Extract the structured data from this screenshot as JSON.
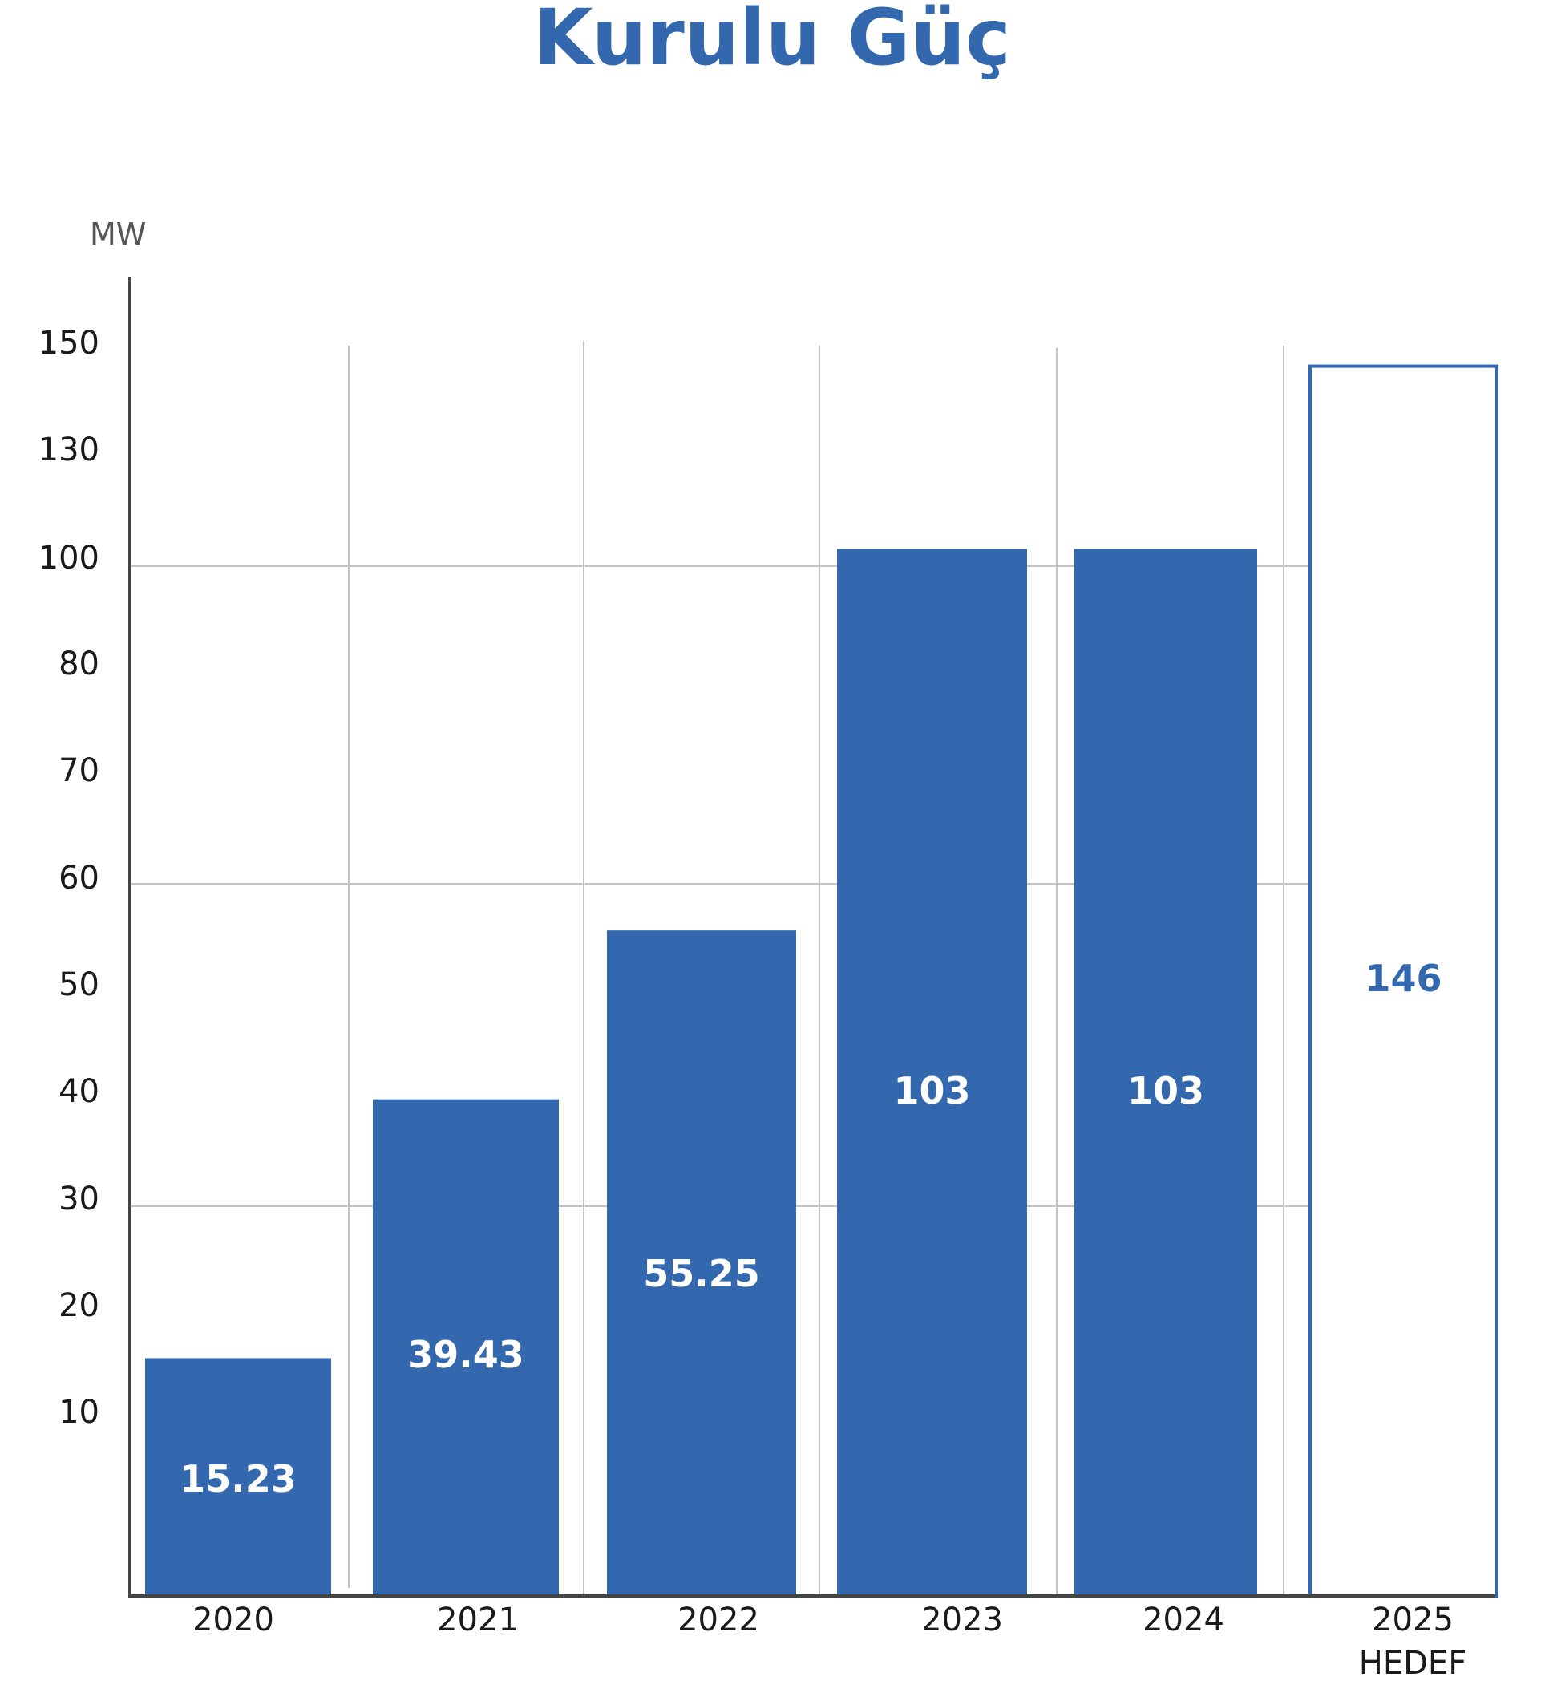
{
  "colors": {
    "bar": "#3368AF",
    "title": "#3368AF",
    "axis": "#444444",
    "grid": "#C4C4C4",
    "text": "#1A1A1A",
    "unit_text": "#555555",
    "bar_label_on_fill": "#FFFFFF"
  },
  "chart_data": {
    "type": "bar",
    "title": "Kurulu Güç",
    "ylabel": "MW",
    "xlabel": "",
    "yticks": [
      "150",
      "130",
      "100",
      "80",
      "70",
      "60",
      "50",
      "40",
      "30",
      "20",
      "10"
    ],
    "categories": [
      {
        "line1": "2020",
        "line2": ""
      },
      {
        "line1": "2021",
        "line2": ""
      },
      {
        "line1": "2022",
        "line2": ""
      },
      {
        "line1": "2023",
        "line2": ""
      },
      {
        "line1": "2024",
        "line2": ""
      },
      {
        "line1": "2025",
        "line2": "HEDEF"
      }
    ],
    "values": [
      15.23,
      39.43,
      55.25,
      103,
      103,
      146
    ],
    "labels": [
      "15.23",
      "39.43",
      "55.25",
      "103",
      "103",
      "146"
    ],
    "styles": [
      "filled",
      "filled",
      "filled",
      "filled",
      "filled",
      "outline"
    ],
    "grid": true,
    "note": ""
  }
}
